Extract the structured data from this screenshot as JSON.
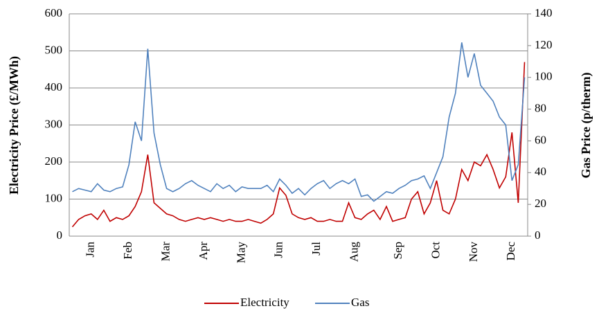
{
  "chart_data": {
    "type": "line",
    "y_label": "Electricity Price (£/MWh)",
    "y2_label": "Gas Price (p/therm)",
    "categories": [
      null,
      null,
      null,
      "Jan",
      null,
      null,
      null,
      null,
      null,
      "Feb",
      null,
      null,
      null,
      null,
      null,
      "Mar",
      null,
      null,
      null,
      null,
      null,
      "Apr",
      null,
      null,
      null,
      null,
      null,
      "May",
      null,
      null,
      null,
      null,
      null,
      "Jun",
      null,
      null,
      null,
      null,
      null,
      "Jul",
      null,
      null,
      null,
      null,
      null,
      "Aug",
      null,
      null,
      null,
      null,
      null,
      null,
      "Sep",
      null,
      null,
      null,
      null,
      null,
      "Oct",
      null,
      null,
      null,
      null,
      null,
      "Nov",
      null,
      null,
      null,
      null,
      null,
      "Dec",
      null,
      null
    ],
    "series": [
      {
        "name": "Electricity",
        "color": "#c00000",
        "values": [
          25,
          45,
          55,
          60,
          45,
          70,
          40,
          50,
          45,
          55,
          80,
          120,
          220,
          90,
          75,
          60,
          55,
          45,
          40,
          45,
          50,
          45,
          50,
          45,
          40,
          45,
          40,
          40,
          45,
          40,
          35,
          45,
          60,
          130,
          110,
          60,
          50,
          45,
          50,
          40,
          40,
          45,
          40,
          40,
          90,
          50,
          45,
          60,
          70,
          45,
          80,
          40,
          45,
          50,
          100,
          120,
          60,
          90,
          150,
          70,
          60,
          100,
          180,
          150,
          200,
          190,
          220,
          180,
          130,
          160,
          280,
          90,
          470
        ]
      },
      {
        "name": "Gas",
        "color": "#4f81bd",
        "axis": "y2",
        "values": [
          28,
          30,
          29,
          28,
          33,
          29,
          28,
          30,
          31,
          45,
          72,
          60,
          118,
          65,
          45,
          30,
          28,
          30,
          33,
          35,
          32,
          30,
          28,
          33,
          30,
          32,
          28,
          31,
          30,
          30,
          30,
          32,
          28,
          36,
          32,
          27,
          30,
          26,
          30,
          33,
          35,
          30,
          33,
          35,
          33,
          36,
          25,
          26,
          22,
          25,
          28,
          27,
          30,
          32,
          35,
          36,
          38,
          30,
          40,
          50,
          75,
          90,
          122,
          100,
          115,
          95,
          90,
          85,
          75,
          70,
          35,
          45,
          100
        ]
      }
    ],
    "ylim": [
      0,
      600
    ],
    "yticks": [
      0,
      100,
      200,
      300,
      400,
      500,
      600
    ],
    "y2lim": [
      0,
      140
    ],
    "y2ticks": [
      0,
      20,
      40,
      60,
      80,
      100,
      120,
      140
    ],
    "grid": true,
    "legend": "bottom"
  }
}
